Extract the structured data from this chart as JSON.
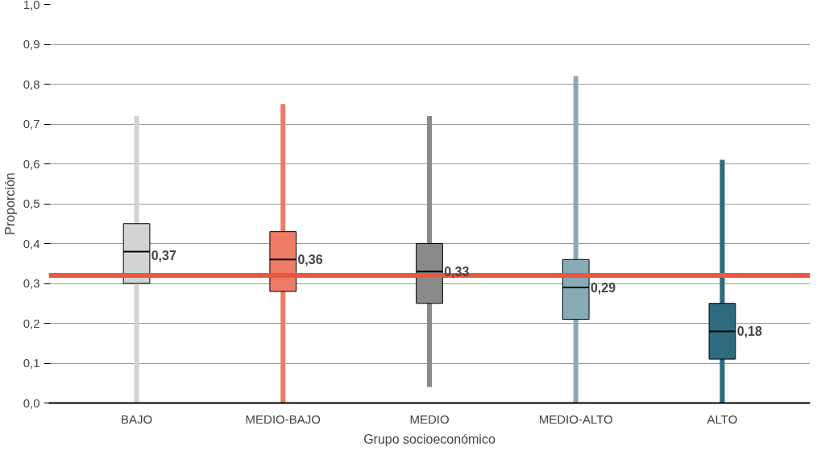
{
  "chart_data": {
    "type": "box",
    "xlabel": "Grupo socioeconómico",
    "ylabel": "Proporción",
    "categories": [
      "BAJO",
      "MEDIO-BAJO",
      "MEDIO",
      "MEDIO-ALTO",
      "ALTO"
    ],
    "colors": [
      "#d1d3d4",
      "#ee7b65",
      "#8a8a8a",
      "#87aab4",
      "#2e6b7e"
    ],
    "boxes": [
      {
        "low": 0.0,
        "q1": 0.3,
        "median": 0.38,
        "q3": 0.45,
        "high": 0.72
      },
      {
        "low": 0.0,
        "q1": 0.28,
        "median": 0.36,
        "q3": 0.43,
        "high": 0.75
      },
      {
        "low": 0.04,
        "q1": 0.25,
        "median": 0.33,
        "q3": 0.4,
        "high": 0.72
      },
      {
        "low": 0.0,
        "q1": 0.21,
        "median": 0.29,
        "q3": 0.36,
        "high": 0.82
      },
      {
        "low": 0.0,
        "q1": 0.11,
        "median": 0.18,
        "q3": 0.25,
        "high": 0.61
      }
    ],
    "annotations": [
      {
        "text": "0,37",
        "x": "BAJO",
        "y": 0.37
      },
      {
        "text": "0,36",
        "x": "MEDIO-BAJO",
        "y": 0.36
      },
      {
        "text": "0,33",
        "x": "MEDIO",
        "y": 0.33
      },
      {
        "text": "0,29",
        "x": "MEDIO-ALTO",
        "y": 0.29
      },
      {
        "text": "0,18",
        "x": "ALTO",
        "y": 0.18
      }
    ],
    "ref_lines": [
      {
        "axis": "y",
        "value": 0.32,
        "color": "#e8593f"
      }
    ],
    "ylim": [
      0,
      1.0
    ],
    "yticks": [
      {
        "value": 0,
        "label": "0,0"
      },
      {
        "value": 0.1,
        "label": "0,1"
      },
      {
        "value": 0.2,
        "label": "0,2"
      },
      {
        "value": 0.3,
        "label": "0,3"
      },
      {
        "value": 0.4,
        "label": "0,4"
      },
      {
        "value": 0.5,
        "label": "0,5"
      },
      {
        "value": 0.6,
        "label": "0,6"
      },
      {
        "value": 0.7,
        "label": "0,7"
      },
      {
        "value": 0.8,
        "label": "0,8"
      },
      {
        "value": 0.9,
        "label": "0,9"
      },
      {
        "value": 1.0,
        "label": "1,0"
      }
    ],
    "grid": "y"
  }
}
